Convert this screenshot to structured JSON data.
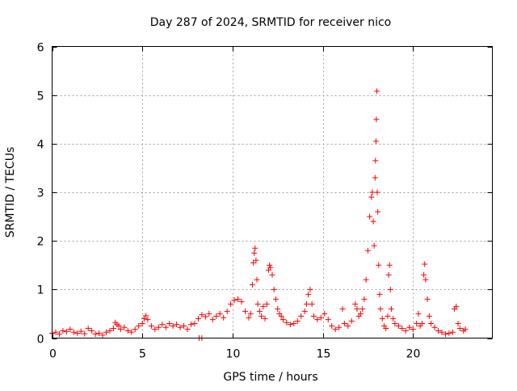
{
  "chart_data": {
    "type": "scatter",
    "title": "Day 287 of 2024, SRMTID for receiver nico",
    "xlabel": "GPS time / hours",
    "ylabel": "SRMTID / TECUs",
    "xlim": [
      0,
      24.4
    ],
    "ylim": [
      0,
      6
    ],
    "x_ticks": [
      0,
      5,
      10,
      15,
      20
    ],
    "y_ticks": [
      0,
      1,
      2,
      3,
      4,
      5,
      6
    ],
    "grid": true,
    "marker": "plus",
    "series": [
      {
        "name": "SRMTID",
        "color": "#ff0000",
        "points": [
          [
            0.0,
            0.1
          ],
          [
            0.2,
            0.12
          ],
          [
            0.4,
            0.08
          ],
          [
            0.6,
            0.15
          ],
          [
            0.8,
            0.13
          ],
          [
            1.0,
            0.18
          ],
          [
            1.2,
            0.12
          ],
          [
            1.4,
            0.1
          ],
          [
            1.6,
            0.14
          ],
          [
            1.8,
            0.09
          ],
          [
            2.0,
            0.2
          ],
          [
            2.2,
            0.15
          ],
          [
            2.4,
            0.08
          ],
          [
            2.6,
            0.1
          ],
          [
            2.8,
            0.06
          ],
          [
            3.0,
            0.12
          ],
          [
            3.2,
            0.15
          ],
          [
            3.4,
            0.2
          ],
          [
            3.5,
            0.32
          ],
          [
            3.6,
            0.28
          ],
          [
            3.7,
            0.25
          ],
          [
            3.8,
            0.18
          ],
          [
            4.0,
            0.22
          ],
          [
            4.2,
            0.15
          ],
          [
            4.4,
            0.12
          ],
          [
            4.6,
            0.18
          ],
          [
            4.8,
            0.25
          ],
          [
            5.0,
            0.3
          ],
          [
            5.1,
            0.4
          ],
          [
            5.2,
            0.46
          ],
          [
            5.3,
            0.38
          ],
          [
            5.5,
            0.25
          ],
          [
            5.7,
            0.18
          ],
          [
            5.9,
            0.22
          ],
          [
            6.1,
            0.28
          ],
          [
            6.3,
            0.22
          ],
          [
            6.5,
            0.3
          ],
          [
            6.7,
            0.25
          ],
          [
            6.9,
            0.28
          ],
          [
            7.1,
            0.22
          ],
          [
            7.3,
            0.25
          ],
          [
            7.5,
            0.18
          ],
          [
            7.7,
            0.28
          ],
          [
            7.9,
            0.3
          ],
          [
            8.1,
            0.4
          ],
          [
            8.3,
            0.48
          ],
          [
            8.5,
            0.44
          ],
          [
            8.7,
            0.5
          ],
          [
            8.9,
            0.38
          ],
          [
            9.1,
            0.45
          ],
          [
            9.3,
            0.5
          ],
          [
            9.5,
            0.42
          ],
          [
            9.7,
            0.55
          ],
          [
            9.9,
            0.7
          ],
          [
            10.1,
            0.78
          ],
          [
            10.3,
            0.8
          ],
          [
            10.5,
            0.75
          ],
          [
            10.7,
            0.55
          ],
          [
            10.9,
            0.42
          ],
          [
            11.0,
            0.5
          ],
          [
            11.1,
            1.1
          ],
          [
            11.15,
            1.55
          ],
          [
            11.2,
            1.75
          ],
          [
            11.25,
            1.85
          ],
          [
            11.3,
            1.6
          ],
          [
            11.35,
            1.2
          ],
          [
            11.4,
            0.7
          ],
          [
            11.5,
            0.55
          ],
          [
            11.6,
            0.45
          ],
          [
            11.7,
            0.65
          ],
          [
            11.8,
            0.4
          ],
          [
            11.9,
            0.7
          ],
          [
            12.0,
            1.4
          ],
          [
            12.05,
            1.5
          ],
          [
            12.1,
            1.45
          ],
          [
            12.2,
            1.3
          ],
          [
            12.3,
            1.0
          ],
          [
            12.4,
            0.8
          ],
          [
            12.5,
            0.6
          ],
          [
            12.6,
            0.5
          ],
          [
            12.7,
            0.45
          ],
          [
            12.8,
            0.38
          ],
          [
            13.0,
            0.32
          ],
          [
            13.2,
            0.28
          ],
          [
            13.4,
            0.3
          ],
          [
            13.6,
            0.35
          ],
          [
            13.8,
            0.45
          ],
          [
            14.0,
            0.55
          ],
          [
            14.1,
            0.7
          ],
          [
            14.2,
            0.9
          ],
          [
            14.3,
            1.0
          ],
          [
            14.4,
            0.7
          ],
          [
            14.5,
            0.45
          ],
          [
            14.7,
            0.38
          ],
          [
            14.9,
            0.42
          ],
          [
            15.1,
            0.5
          ],
          [
            15.3,
            0.38
          ],
          [
            15.5,
            0.25
          ],
          [
            15.7,
            0.18
          ],
          [
            15.9,
            0.22
          ],
          [
            16.1,
            0.6
          ],
          [
            16.2,
            0.3
          ],
          [
            16.4,
            0.25
          ],
          [
            16.6,
            0.35
          ],
          [
            16.8,
            0.7
          ],
          [
            16.9,
            0.6
          ],
          [
            17.0,
            0.45
          ],
          [
            17.1,
            0.5
          ],
          [
            17.2,
            0.6
          ],
          [
            17.3,
            0.8
          ],
          [
            17.4,
            1.2
          ],
          [
            17.5,
            1.8
          ],
          [
            17.6,
            2.5
          ],
          [
            17.7,
            2.9
          ],
          [
            17.75,
            3.0
          ],
          [
            17.8,
            2.4
          ],
          [
            17.85,
            1.9
          ],
          [
            17.9,
            3.3
          ],
          [
            17.92,
            3.65
          ],
          [
            17.95,
            4.05
          ],
          [
            17.97,
            4.5
          ],
          [
            18.0,
            5.08
          ],
          [
            18.02,
            3.0
          ],
          [
            18.05,
            2.6
          ],
          [
            18.1,
            1.5
          ],
          [
            18.15,
            0.9
          ],
          [
            18.2,
            0.6
          ],
          [
            18.3,
            0.4
          ],
          [
            18.4,
            0.25
          ],
          [
            18.5,
            0.2
          ],
          [
            18.6,
            0.45
          ],
          [
            18.65,
            1.3
          ],
          [
            18.7,
            1.5
          ],
          [
            18.75,
            1.0
          ],
          [
            18.8,
            0.6
          ],
          [
            18.9,
            0.4
          ],
          [
            19.0,
            0.3
          ],
          [
            19.2,
            0.25
          ],
          [
            19.4,
            0.2
          ],
          [
            19.6,
            0.15
          ],
          [
            19.8,
            0.22
          ],
          [
            20.0,
            0.18
          ],
          [
            20.2,
            0.3
          ],
          [
            20.3,
            0.5
          ],
          [
            20.4,
            0.25
          ],
          [
            20.5,
            0.3
          ],
          [
            20.6,
            1.3
          ],
          [
            20.65,
            1.52
          ],
          [
            20.7,
            1.2
          ],
          [
            20.8,
            0.8
          ],
          [
            20.9,
            0.45
          ],
          [
            21.0,
            0.3
          ],
          [
            21.2,
            0.22
          ],
          [
            21.4,
            0.15
          ],
          [
            21.6,
            0.12
          ],
          [
            21.8,
            0.08
          ],
          [
            22.0,
            0.1
          ],
          [
            22.2,
            0.12
          ],
          [
            22.3,
            0.6
          ],
          [
            22.4,
            0.65
          ],
          [
            22.5,
            0.3
          ],
          [
            22.6,
            0.2
          ],
          [
            22.8,
            0.15
          ],
          [
            22.9,
            0.18
          ],
          [
            8.15,
            0.0
          ],
          [
            8.3,
            0.0
          ]
        ]
      }
    ]
  }
}
